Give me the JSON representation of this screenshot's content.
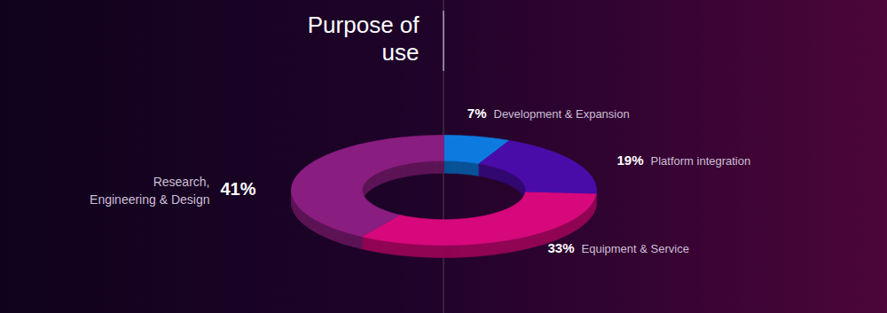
{
  "chart_data": {
    "type": "donut",
    "title": "Purpose of use",
    "categories": [
      "Development & Expansion",
      "Platform integration",
      "Equipment & Service",
      "Research, Engineering & Design"
    ],
    "values": [
      7,
      19,
      33,
      41
    ],
    "value_labels": [
      "7%",
      "19%",
      "33%",
      "41%"
    ],
    "colors": [
      "#0d7ae0",
      "#4a0ca8",
      "#d6087c",
      "#8a1d80"
    ],
    "data_labels": true
  }
}
